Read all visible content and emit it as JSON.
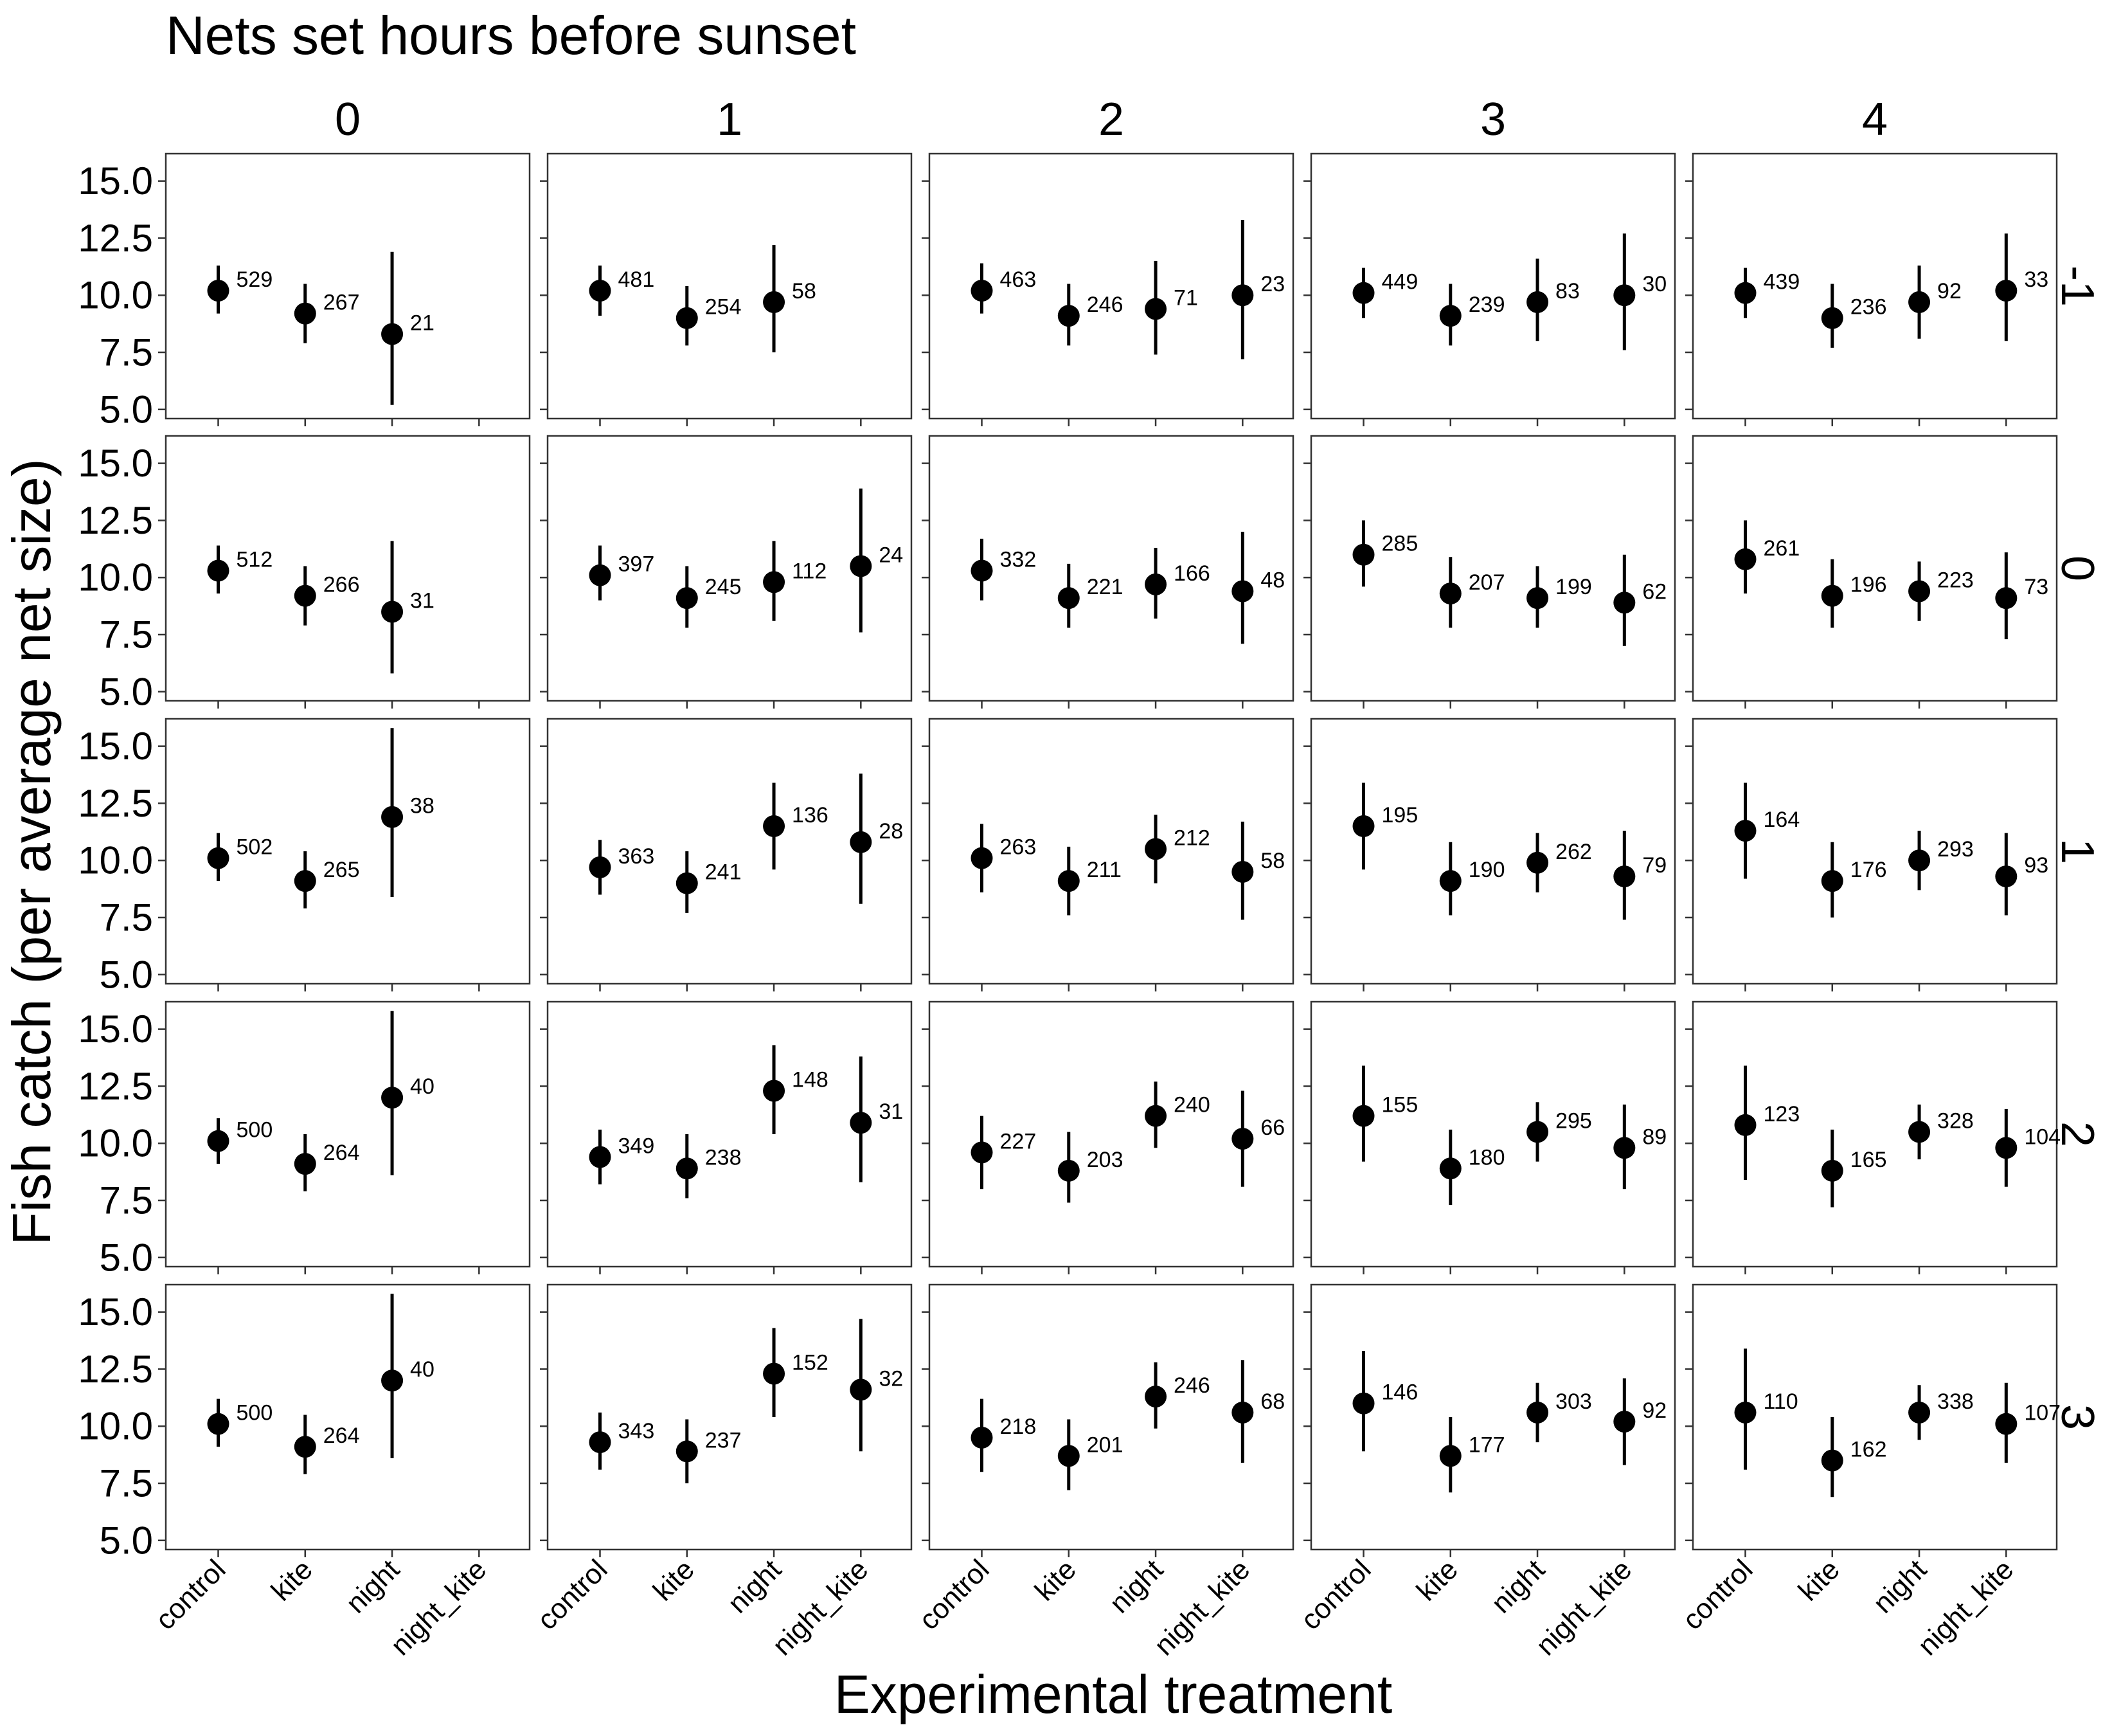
{
  "chart_data": {
    "type": "scatter",
    "title": "Nets set hours before sunset",
    "xlabel": "Experimental treatment",
    "ylabel": "Fish catch (per average net size)",
    "categories": [
      "control",
      "kite",
      "night",
      "night_kite"
    ],
    "col_facets": [
      "0",
      "1",
      "2",
      "3",
      "4"
    ],
    "row_facets": [
      "-1",
      "0",
      "1",
      "2",
      "3"
    ],
    "yticks": [
      "5.0",
      "7.5",
      "10.0",
      "12.5",
      "15.0"
    ],
    "ylim": [
      4.6,
      16.2
    ],
    "panels": [
      {
        "row": "-1",
        "col": "0",
        "points": [
          {
            "cat": "control",
            "y": 10.2,
            "lo": 9.2,
            "hi": 11.3,
            "n": "529"
          },
          {
            "cat": "kite",
            "y": 9.2,
            "lo": 7.9,
            "hi": 10.5,
            "n": "267"
          },
          {
            "cat": "night",
            "y": 8.3,
            "lo": 5.2,
            "hi": 11.9,
            "n": "21"
          }
        ]
      },
      {
        "row": "-1",
        "col": "1",
        "points": [
          {
            "cat": "control",
            "y": 10.2,
            "lo": 9.1,
            "hi": 11.3,
            "n": "481"
          },
          {
            "cat": "kite",
            "y": 9.0,
            "lo": 7.8,
            "hi": 10.4,
            "n": "254"
          },
          {
            "cat": "night",
            "y": 9.7,
            "lo": 7.5,
            "hi": 12.2,
            "n": "58"
          }
        ]
      },
      {
        "row": "-1",
        "col": "2",
        "points": [
          {
            "cat": "control",
            "y": 10.2,
            "lo": 9.2,
            "hi": 11.4,
            "n": "463"
          },
          {
            "cat": "kite",
            "y": 9.1,
            "lo": 7.8,
            "hi": 10.5,
            "n": "246"
          },
          {
            "cat": "night",
            "y": 9.4,
            "lo": 7.4,
            "hi": 11.5,
            "n": "71"
          },
          {
            "cat": "night_kite",
            "y": 10.0,
            "lo": 7.2,
            "hi": 13.3,
            "n": "23"
          }
        ]
      },
      {
        "row": "-1",
        "col": "3",
        "points": [
          {
            "cat": "control",
            "y": 10.1,
            "lo": 9.0,
            "hi": 11.2,
            "n": "449"
          },
          {
            "cat": "kite",
            "y": 9.1,
            "lo": 7.8,
            "hi": 10.5,
            "n": "239"
          },
          {
            "cat": "night",
            "y": 9.7,
            "lo": 8.0,
            "hi": 11.6,
            "n": "83"
          },
          {
            "cat": "night_kite",
            "y": 10.0,
            "lo": 7.6,
            "hi": 12.7,
            "n": "30"
          }
        ]
      },
      {
        "row": "-1",
        "col": "4",
        "points": [
          {
            "cat": "control",
            "y": 10.1,
            "lo": 9.0,
            "hi": 11.2,
            "n": "439"
          },
          {
            "cat": "kite",
            "y": 9.0,
            "lo": 7.7,
            "hi": 10.5,
            "n": "236"
          },
          {
            "cat": "night",
            "y": 9.7,
            "lo": 8.1,
            "hi": 11.3,
            "n": "92"
          },
          {
            "cat": "night_kite",
            "y": 10.2,
            "lo": 8.0,
            "hi": 12.7,
            "n": "33"
          }
        ]
      },
      {
        "row": "0",
        "col": "0",
        "points": [
          {
            "cat": "control",
            "y": 10.3,
            "lo": 9.3,
            "hi": 11.4,
            "n": "512"
          },
          {
            "cat": "kite",
            "y": 9.2,
            "lo": 7.9,
            "hi": 10.5,
            "n": "266"
          },
          {
            "cat": "night",
            "y": 8.5,
            "lo": 5.8,
            "hi": 11.6,
            "n": "31"
          }
        ]
      },
      {
        "row": "0",
        "col": "1",
        "points": [
          {
            "cat": "control",
            "y": 10.1,
            "lo": 9.0,
            "hi": 11.4,
            "n": "397"
          },
          {
            "cat": "kite",
            "y": 9.1,
            "lo": 7.8,
            "hi": 10.5,
            "n": "245"
          },
          {
            "cat": "night",
            "y": 9.8,
            "lo": 8.1,
            "hi": 11.6,
            "n": "112"
          },
          {
            "cat": "night_kite",
            "y": 10.5,
            "lo": 7.6,
            "hi": 13.9,
            "n": "24"
          }
        ]
      },
      {
        "row": "0",
        "col": "2",
        "points": [
          {
            "cat": "control",
            "y": 10.3,
            "lo": 9.0,
            "hi": 11.7,
            "n": "332"
          },
          {
            "cat": "kite",
            "y": 9.1,
            "lo": 7.8,
            "hi": 10.6,
            "n": "221"
          },
          {
            "cat": "night",
            "y": 9.7,
            "lo": 8.2,
            "hi": 11.3,
            "n": "166"
          },
          {
            "cat": "night_kite",
            "y": 9.4,
            "lo": 7.1,
            "hi": 12.0,
            "n": "48"
          }
        ]
      },
      {
        "row": "0",
        "col": "3",
        "points": [
          {
            "cat": "control",
            "y": 11.0,
            "lo": 9.6,
            "hi": 12.5,
            "n": "285"
          },
          {
            "cat": "kite",
            "y": 9.3,
            "lo": 7.8,
            "hi": 10.9,
            "n": "207"
          },
          {
            "cat": "night",
            "y": 9.1,
            "lo": 7.8,
            "hi": 10.5,
            "n": "199"
          },
          {
            "cat": "night_kite",
            "y": 8.9,
            "lo": 7.0,
            "hi": 11.0,
            "n": "62"
          }
        ]
      },
      {
        "row": "0",
        "col": "4",
        "points": [
          {
            "cat": "control",
            "y": 10.8,
            "lo": 9.3,
            "hi": 12.5,
            "n": "261"
          },
          {
            "cat": "kite",
            "y": 9.2,
            "lo": 7.8,
            "hi": 10.8,
            "n": "196"
          },
          {
            "cat": "night",
            "y": 9.4,
            "lo": 8.1,
            "hi": 10.7,
            "n": "223"
          },
          {
            "cat": "night_kite",
            "y": 9.1,
            "lo": 7.3,
            "hi": 11.1,
            "n": "73"
          }
        ]
      },
      {
        "row": "1",
        "col": "0",
        "points": [
          {
            "cat": "control",
            "y": 10.1,
            "lo": 9.1,
            "hi": 11.2,
            "n": "502"
          },
          {
            "cat": "kite",
            "y": 9.1,
            "lo": 7.9,
            "hi": 10.4,
            "n": "265"
          },
          {
            "cat": "night",
            "y": 11.9,
            "lo": 8.4,
            "hi": 15.8,
            "n": "38"
          }
        ]
      },
      {
        "row": "1",
        "col": "1",
        "points": [
          {
            "cat": "control",
            "y": 9.7,
            "lo": 8.5,
            "hi": 10.9,
            "n": "363"
          },
          {
            "cat": "kite",
            "y": 9.0,
            "lo": 7.7,
            "hi": 10.4,
            "n": "241"
          },
          {
            "cat": "night",
            "y": 11.5,
            "lo": 9.6,
            "hi": 13.4,
            "n": "136"
          },
          {
            "cat": "night_kite",
            "y": 10.8,
            "lo": 8.1,
            "hi": 13.8,
            "n": "28"
          }
        ]
      },
      {
        "row": "1",
        "col": "2",
        "points": [
          {
            "cat": "control",
            "y": 10.1,
            "lo": 8.6,
            "hi": 11.6,
            "n": "263"
          },
          {
            "cat": "kite",
            "y": 9.1,
            "lo": 7.6,
            "hi": 10.6,
            "n": "211"
          },
          {
            "cat": "night",
            "y": 10.5,
            "lo": 9.0,
            "hi": 12.0,
            "n": "212"
          },
          {
            "cat": "night_kite",
            "y": 9.5,
            "lo": 7.4,
            "hi": 11.7,
            "n": "58"
          }
        ]
      },
      {
        "row": "1",
        "col": "3",
        "points": [
          {
            "cat": "control",
            "y": 11.5,
            "lo": 9.6,
            "hi": 13.4,
            "n": "195"
          },
          {
            "cat": "kite",
            "y": 9.1,
            "lo": 7.6,
            "hi": 10.8,
            "n": "190"
          },
          {
            "cat": "night",
            "y": 9.9,
            "lo": 8.6,
            "hi": 11.2,
            "n": "262"
          },
          {
            "cat": "night_kite",
            "y": 9.3,
            "lo": 7.4,
            "hi": 11.3,
            "n": "79"
          }
        ]
      },
      {
        "row": "1",
        "col": "4",
        "points": [
          {
            "cat": "control",
            "y": 11.3,
            "lo": 9.2,
            "hi": 13.4,
            "n": "164"
          },
          {
            "cat": "kite",
            "y": 9.1,
            "lo": 7.5,
            "hi": 10.8,
            "n": "176"
          },
          {
            "cat": "night",
            "y": 10.0,
            "lo": 8.7,
            "hi": 11.3,
            "n": "293"
          },
          {
            "cat": "night_kite",
            "y": 9.3,
            "lo": 7.6,
            "hi": 11.2,
            "n": "93"
          }
        ]
      },
      {
        "row": "2",
        "col": "0",
        "points": [
          {
            "cat": "control",
            "y": 10.1,
            "lo": 9.1,
            "hi": 11.1,
            "n": "500"
          },
          {
            "cat": "kite",
            "y": 9.1,
            "lo": 7.9,
            "hi": 10.4,
            "n": "264"
          },
          {
            "cat": "night",
            "y": 12.0,
            "lo": 8.6,
            "hi": 15.8,
            "n": "40"
          }
        ]
      },
      {
        "row": "2",
        "col": "1",
        "points": [
          {
            "cat": "control",
            "y": 9.4,
            "lo": 8.2,
            "hi": 10.6,
            "n": "349"
          },
          {
            "cat": "kite",
            "y": 8.9,
            "lo": 7.6,
            "hi": 10.4,
            "n": "238"
          },
          {
            "cat": "night",
            "y": 12.3,
            "lo": 10.4,
            "hi": 14.3,
            "n": "148"
          },
          {
            "cat": "night_kite",
            "y": 10.9,
            "lo": 8.3,
            "hi": 13.8,
            "n": "31"
          }
        ]
      },
      {
        "row": "2",
        "col": "2",
        "points": [
          {
            "cat": "control",
            "y": 9.6,
            "lo": 8.0,
            "hi": 11.2,
            "n": "227"
          },
          {
            "cat": "kite",
            "y": 8.8,
            "lo": 7.4,
            "hi": 10.5,
            "n": "203"
          },
          {
            "cat": "night",
            "y": 11.2,
            "lo": 9.8,
            "hi": 12.7,
            "n": "240"
          },
          {
            "cat": "night_kite",
            "y": 10.2,
            "lo": 8.1,
            "hi": 12.3,
            "n": "66"
          }
        ]
      },
      {
        "row": "2",
        "col": "3",
        "points": [
          {
            "cat": "control",
            "y": 11.2,
            "lo": 9.2,
            "hi": 13.4,
            "n": "155"
          },
          {
            "cat": "kite",
            "y": 8.9,
            "lo": 7.3,
            "hi": 10.6,
            "n": "180"
          },
          {
            "cat": "night",
            "y": 10.5,
            "lo": 9.2,
            "hi": 11.8,
            "n": "295"
          },
          {
            "cat": "night_kite",
            "y": 9.8,
            "lo": 8.0,
            "hi": 11.7,
            "n": "89"
          }
        ]
      },
      {
        "row": "2",
        "col": "4",
        "points": [
          {
            "cat": "control",
            "y": 10.8,
            "lo": 8.4,
            "hi": 13.4,
            "n": "123"
          },
          {
            "cat": "kite",
            "y": 8.8,
            "lo": 7.2,
            "hi": 10.6,
            "n": "165"
          },
          {
            "cat": "night",
            "y": 10.5,
            "lo": 9.3,
            "hi": 11.7,
            "n": "328"
          },
          {
            "cat": "night_kite",
            "y": 9.8,
            "lo": 8.1,
            "hi": 11.5,
            "n": "104"
          }
        ]
      },
      {
        "row": "3",
        "col": "0",
        "points": [
          {
            "cat": "control",
            "y": 10.1,
            "lo": 9.1,
            "hi": 11.2,
            "n": "500"
          },
          {
            "cat": "kite",
            "y": 9.1,
            "lo": 7.9,
            "hi": 10.5,
            "n": "264"
          },
          {
            "cat": "night",
            "y": 12.0,
            "lo": 8.6,
            "hi": 15.8,
            "n": "40"
          }
        ]
      },
      {
        "row": "3",
        "col": "1",
        "points": [
          {
            "cat": "control",
            "y": 9.3,
            "lo": 8.1,
            "hi": 10.6,
            "n": "343"
          },
          {
            "cat": "kite",
            "y": 8.9,
            "lo": 7.5,
            "hi": 10.3,
            "n": "237"
          },
          {
            "cat": "night",
            "y": 12.3,
            "lo": 10.4,
            "hi": 14.3,
            "n": "152"
          },
          {
            "cat": "night_kite",
            "y": 11.6,
            "lo": 8.9,
            "hi": 14.7,
            "n": "32"
          }
        ]
      },
      {
        "row": "3",
        "col": "2",
        "points": [
          {
            "cat": "control",
            "y": 9.5,
            "lo": 8.0,
            "hi": 11.2,
            "n": "218"
          },
          {
            "cat": "kite",
            "y": 8.7,
            "lo": 7.2,
            "hi": 10.3,
            "n": "201"
          },
          {
            "cat": "night",
            "y": 11.3,
            "lo": 9.9,
            "hi": 12.8,
            "n": "246"
          },
          {
            "cat": "night_kite",
            "y": 10.6,
            "lo": 8.4,
            "hi": 12.9,
            "n": "68"
          }
        ]
      },
      {
        "row": "3",
        "col": "3",
        "points": [
          {
            "cat": "control",
            "y": 11.0,
            "lo": 8.9,
            "hi": 13.3,
            "n": "146"
          },
          {
            "cat": "kite",
            "y": 8.7,
            "lo": 7.1,
            "hi": 10.4,
            "n": "177"
          },
          {
            "cat": "night",
            "y": 10.6,
            "lo": 9.3,
            "hi": 11.9,
            "n": "303"
          },
          {
            "cat": "night_kite",
            "y": 10.2,
            "lo": 8.3,
            "hi": 12.1,
            "n": "92"
          }
        ]
      },
      {
        "row": "3",
        "col": "4",
        "points": [
          {
            "cat": "control",
            "y": 10.6,
            "lo": 8.1,
            "hi": 13.4,
            "n": "110"
          },
          {
            "cat": "kite",
            "y": 8.5,
            "lo": 6.9,
            "hi": 10.4,
            "n": "162"
          },
          {
            "cat": "night",
            "y": 10.6,
            "lo": 9.4,
            "hi": 11.8,
            "n": "338"
          },
          {
            "cat": "night_kite",
            "y": 10.1,
            "lo": 8.4,
            "hi": 11.9,
            "n": "107"
          }
        ]
      }
    ]
  }
}
